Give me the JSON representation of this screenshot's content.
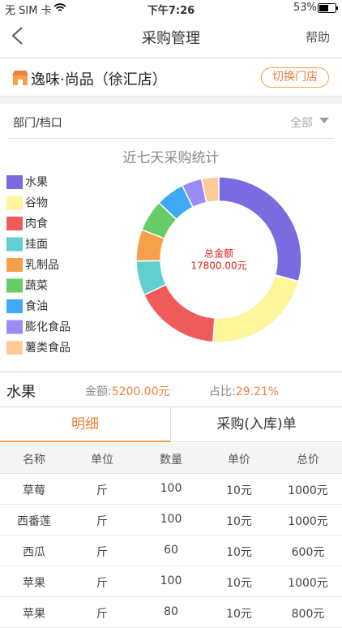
{
  "status_bar": {
    "carrier": "无 SIM 卡",
    "time": "下午7:26",
    "battery": "53%"
  },
  "nav": {
    "title": "采购管理",
    "help": "帮助"
  },
  "store": {
    "name": "逸味·尚品（徐汇店）",
    "switch": "切换门店"
  },
  "filter": {
    "label": "部门/档口",
    "value": "全部"
  },
  "chart_data": {
    "type": "pie",
    "donut": true,
    "title": "近七天采购统计",
    "center_label": "总金额",
    "center_value": "17800.00元",
    "categories": [
      "水果",
      "谷物",
      "肉食",
      "挂面",
      "乳制品",
      "蔬菜",
      "食油",
      "膨化食品",
      "薯类食品"
    ],
    "values": [
      5200,
      3900,
      3000,
      1200,
      1100,
      1100,
      1000,
      700,
      600
    ],
    "colors": [
      "#7b6be0",
      "#fff59a",
      "#ef5b5b",
      "#5fcfcf",
      "#f7a04b",
      "#66cc66",
      "#3fa9f5",
      "#9b8cf5",
      "#ffcc99"
    ]
  },
  "summary": {
    "name": "水果",
    "amount_label": "金额:",
    "amount": "5200.00元",
    "ratio_label": "占比:",
    "ratio": "29.21%"
  },
  "tabs": [
    "明细",
    "采购(入库)单"
  ],
  "table": {
    "header": [
      "名称",
      "单位",
      "数量",
      "单价",
      "总价"
    ],
    "rows": [
      [
        "草莓",
        "斤",
        "100",
        "10元",
        "1000元"
      ],
      [
        "西番莲",
        "斤",
        "100",
        "10元",
        "1000元"
      ],
      [
        "西瓜",
        "斤",
        "60",
        "10元",
        "600元"
      ],
      [
        "苹果",
        "斤",
        "100",
        "10元",
        "1000元"
      ],
      [
        "苹果",
        "斤",
        "80",
        "10元",
        "800元"
      ]
    ]
  }
}
